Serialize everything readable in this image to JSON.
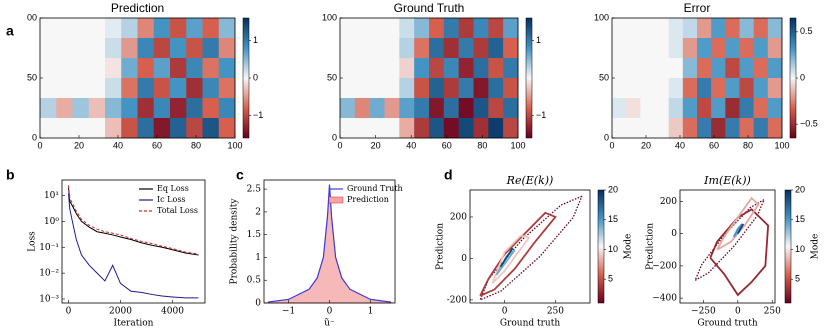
{
  "panel_labels": [
    "a",
    "b",
    "c",
    "d"
  ],
  "chart_data": [
    {
      "type": "heatmap",
      "title": "Prediction",
      "colormap": "RdBu",
      "xlim": [
        0,
        100
      ],
      "ylim": [
        0,
        100
      ],
      "xticks": [
        0,
        20,
        40,
        60,
        80,
        100
      ],
      "yticks": [
        0,
        50,
        {
          "value": 100,
          "label": "00"
        }
      ],
      "clim": [
        -1.6,
        1.6
      ],
      "cticks": [
        1,
        0,
        {
          "value": -1,
          "label": "−1"
        }
      ],
      "z": [
        [
          0,
          0,
          0,
          0,
          0.1,
          0.3,
          -0.6,
          0.8,
          -0.9,
          0.7,
          -0.8,
          0.5
        ],
        [
          0,
          0,
          0,
          0,
          0.2,
          -0.5,
          0.9,
          -1.0,
          0.8,
          -0.9,
          1.0,
          -0.6
        ],
        [
          0,
          0,
          0,
          0,
          -0.1,
          0.6,
          -0.8,
          0.7,
          -1.1,
          0.9,
          -0.7,
          0.8
        ],
        [
          0,
          0,
          0,
          0,
          0.2,
          -0.7,
          1.0,
          -0.9,
          0.8,
          -1.2,
          0.9,
          -0.7
        ],
        [
          0.3,
          -0.4,
          0.4,
          -0.3,
          0.5,
          0.8,
          -1.2,
          0.9,
          -1.3,
          1.1,
          -0.8,
          0.9
        ],
        [
          0,
          0,
          0,
          0,
          -0.3,
          -0.9,
          1.1,
          -1.4,
          1.2,
          -1.0,
          1.3,
          -0.8
        ]
      ]
    },
    {
      "type": "heatmap",
      "title": "Ground Truth",
      "colormap": "RdBu",
      "xlim": [
        0,
        100
      ],
      "ylim": [
        0,
        100
      ],
      "xticks": [
        0,
        20,
        40,
        60,
        80,
        100
      ],
      "yticks": [
        0,
        50,
        100
      ],
      "clim": [
        -1.6,
        1.6
      ],
      "cticks": [
        1,
        {
          "value": -1,
          "label": "−1"
        }
      ],
      "z": [
        [
          0,
          0,
          0,
          0,
          0.2,
          0.5,
          -0.8,
          1.0,
          -1.1,
          0.9,
          -1.0,
          0.7
        ],
        [
          0,
          0,
          0,
          0,
          0.3,
          -0.7,
          1.1,
          -1.2,
          1.0,
          -1.1,
          1.2,
          -0.8
        ],
        [
          0,
          0,
          0,
          0,
          -0.2,
          0.8,
          -1.0,
          0.9,
          -1.3,
          1.1,
          -0.9,
          1.0
        ],
        [
          0,
          0,
          0,
          0,
          0.3,
          -0.9,
          1.2,
          -1.1,
          1.0,
          -1.4,
          1.1,
          -0.9
        ],
        [
          0.5,
          -0.6,
          0.6,
          -0.5,
          0.7,
          1.0,
          -1.4,
          1.1,
          -1.5,
          1.3,
          -1.0,
          1.1
        ],
        [
          0,
          0,
          0,
          0,
          -0.4,
          -1.1,
          1.3,
          -1.5,
          1.4,
          -1.2,
          1.5,
          -1.0
        ]
      ]
    },
    {
      "type": "heatmap",
      "title": "Error",
      "colormap": "RdBu",
      "xlim": [
        0,
        100
      ],
      "ylim": [
        0,
        100
      ],
      "xticks": [
        0,
        20,
        40,
        60,
        80,
        100
      ],
      "yticks": [
        0,
        50,
        100
      ],
      "clim": [
        -0.65,
        0.65
      ],
      "cticks": [
        0.5,
        0,
        {
          "value": -0.5,
          "label": "−0.5"
        }
      ],
      "z": [
        [
          0,
          0,
          0,
          0,
          0.05,
          0.1,
          -0.2,
          0.3,
          -0.3,
          0.2,
          -0.3,
          0.2
        ],
        [
          0,
          0,
          0,
          0,
          0.05,
          -0.2,
          0.3,
          -0.3,
          0.3,
          -0.3,
          0.3,
          -0.2
        ],
        [
          0,
          0,
          0,
          0,
          0,
          0.2,
          -0.3,
          0.3,
          -0.4,
          0.3,
          -0.3,
          0.3
        ],
        [
          0,
          0,
          0,
          0,
          0.05,
          -0.3,
          0.4,
          -0.3,
          0.3,
          -0.4,
          0.3,
          -0.2
        ],
        [
          0.05,
          -0.05,
          0,
          0,
          0.1,
          0.3,
          -0.4,
          0.3,
          -0.5,
          0.4,
          -0.3,
          0.3
        ],
        [
          0,
          0,
          0,
          0,
          -0.1,
          -0.3,
          0.4,
          -0.5,
          0.4,
          -0.3,
          0.4,
          -0.3
        ]
      ]
    },
    {
      "type": "line",
      "xlabel": "Iteration",
      "ylabel": "Loss",
      "log_y": true,
      "legend": "upper right",
      "xlim": [
        -250,
        5250
      ],
      "xticks": [
        0,
        2000,
        4000
      ],
      "ylim": [
        0.0007,
        40
      ],
      "yticks": [
        {
          "value": 0.001,
          "label": "10⁻³"
        },
        {
          "value": 0.01,
          "label": "10⁻²"
        },
        {
          "value": 0.1,
          "label": "10⁻¹"
        },
        {
          "value": 1,
          "label": "10⁰"
        },
        {
          "value": 10,
          "label": "10¹"
        }
      ],
      "x": [
        0,
        50,
        150,
        300,
        500,
        800,
        1100,
        1400,
        1700,
        2000,
        2400,
        2800,
        3200,
        3600,
        4000,
        4500,
        5000
      ],
      "series": [
        {
          "name": "Eq Loss",
          "color": "#000000",
          "values": [
            20,
            6,
            4,
            2,
            1,
            0.6,
            0.4,
            0.35,
            0.3,
            0.25,
            0.2,
            0.15,
            0.12,
            0.1,
            0.08,
            0.06,
            0.05
          ]
        },
        {
          "name": "Ic Loss",
          "color": "#1c1c8c",
          "values": [
            12,
            3,
            1,
            0.2,
            0.05,
            0.02,
            0.01,
            0.005,
            0.02,
            0.004,
            0.002,
            0.0018,
            0.0015,
            0.0013,
            0.0012,
            0.0011,
            0.0011
          ]
        },
        {
          "name": "Total Loss",
          "color": "#d62728",
          "dashed": true,
          "values": [
            25,
            8,
            5,
            2.5,
            1.2,
            0.7,
            0.5,
            0.4,
            0.35,
            0.3,
            0.22,
            0.17,
            0.14,
            0.11,
            0.09,
            0.065,
            0.055
          ]
        }
      ]
    },
    {
      "type": "density",
      "xlabel": "ũ⁻",
      "ylabel": "Probability density",
      "legend": "upper right",
      "xlim": [
        -1.6,
        1.6
      ],
      "xticks": [
        {
          "value": -1,
          "label": "−1"
        },
        0,
        1
      ],
      "ylim": [
        0,
        2.7
      ],
      "yticks": [
        0,
        0.5,
        1,
        1.5,
        2,
        2.5
      ],
      "x": [
        -1.5,
        -1,
        -0.5,
        -0.3,
        -0.15,
        -0.05,
        0,
        0.05,
        0.15,
        0.3,
        0.5,
        1,
        1.5
      ],
      "series": [
        {
          "name": "Ground Truth",
          "color": "#3b3bd6",
          "values": [
            0.02,
            0.08,
            0.3,
            0.55,
            1.0,
            1.9,
            2.6,
            1.9,
            1.0,
            0.55,
            0.3,
            0.08,
            0.02
          ]
        },
        {
          "name": "Prediction",
          "color": "#f4a6a6",
          "fill": true,
          "values": [
            0.02,
            0.08,
            0.3,
            0.56,
            1.0,
            1.85,
            2.55,
            1.85,
            1.0,
            0.56,
            0.3,
            0.08,
            0.02
          ]
        }
      ]
    },
    {
      "type": "loop",
      "title": "Re(E(k))",
      "xlabel": "Ground truth",
      "ylabel": "Prediction",
      "colormap": "RdBu",
      "clabel": "Mode",
      "xlim": [
        -170,
        420
      ],
      "xticks": [
        0,
        250
      ],
      "ylim": [
        -215,
        330
      ],
      "yticks": [
        -200,
        0,
        200
      ],
      "clim": [
        1,
        20
      ],
      "cticks": [
        5,
        10,
        15,
        20
      ],
      "series": [
        {
          "mode": 1,
          "dashed": true,
          "x": [
            380,
            277,
            88,
            -77,
            -120,
            -17,
            172,
            337,
            380
          ],
          "y": [
            300,
            257,
            92,
            -97,
            -200,
            -157,
            8,
            197,
            300
          ]
        },
        {
          "mode": 4,
          "x": [
            -120,
            -50,
            50,
            150,
            250,
            200,
            100,
            0,
            -80,
            -120
          ],
          "y": [
            -180,
            -150,
            -50,
            80,
            200,
            220,
            120,
            20,
            -100,
            -180
          ]
        },
        {
          "mode": 9,
          "x": [
            -60,
            0,
            60,
            120,
            80,
            0,
            -60
          ],
          "y": [
            -120,
            -60,
            20,
            100,
            110,
            30,
            -120
          ]
        },
        {
          "mode": 14,
          "x": [
            -40,
            -10,
            20,
            50,
            10,
            -40
          ],
          "y": [
            -80,
            -40,
            0,
            40,
            10,
            -80
          ]
        },
        {
          "mode": 19,
          "x": [
            -20,
            0,
            20,
            40
          ],
          "y": [
            -40,
            -10,
            20,
            50
          ]
        }
      ]
    },
    {
      "type": "loop",
      "title": "Im(E(k))",
      "xlabel": "Ground truth",
      "ylabel": "Prediction",
      "colormap": "RdBu",
      "clabel": "Mode",
      "xlim": [
        -420,
        270
      ],
      "xticks": [
        {
          "value": -250,
          "label": "−250"
        },
        0,
        250
      ],
      "ylim": [
        -430,
        270
      ],
      "yticks": [
        {
          "value": -400,
          "label": "−400"
        },
        {
          "value": -200,
          "label": "−200"
        },
        0,
        200
      ],
      "clim": [
        1,
        20
      ],
      "cticks": [
        5,
        10,
        15,
        20
      ],
      "series": [
        {
          "mode": 1,
          "dashed": true,
          "x": [
            190,
            92,
            -95,
            -262,
            -310,
            -212,
            -25,
            142,
            190
          ],
          "y": [
            210,
            162,
            -5,
            -192,
            -290,
            -242,
            -75,
            112,
            210
          ]
        },
        {
          "mode": 3,
          "x": [
            -200,
            -100,
            0,
            100,
            200,
            220,
            100,
            0,
            -150,
            -200
          ],
          "y": [
            -150,
            -250,
            -380,
            -300,
            -200,
            50,
            150,
            100,
            -50,
            -150
          ]
        },
        {
          "mode": 8,
          "x": [
            -150,
            -50,
            50,
            150,
            100,
            0,
            -100,
            -150
          ],
          "y": [
            -100,
            -50,
            50,
            180,
            220,
            100,
            -20,
            -100
          ]
        },
        {
          "mode": 15,
          "x": [
            -30,
            0,
            30,
            10,
            -30
          ],
          "y": [
            -20,
            30,
            60,
            20,
            -20
          ]
        },
        {
          "mode": 19,
          "x": [
            0,
            20,
            40
          ],
          "y": [
            0,
            30,
            60
          ]
        }
      ]
    }
  ]
}
